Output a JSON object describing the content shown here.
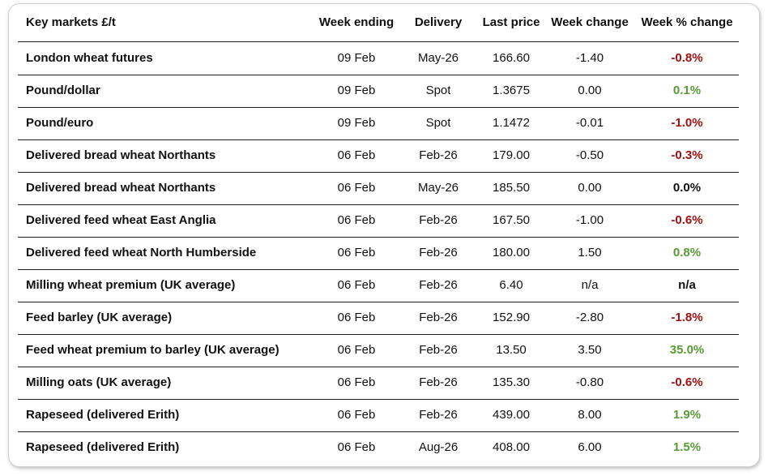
{
  "table": {
    "header": [
      "Key markets £/t",
      "Week ending",
      "Delivery",
      "Last price",
      "Week change",
      "Week % change"
    ],
    "rows": [
      [
        "London wheat futures",
        "09 Feb",
        "May-26",
        "166.60",
        "-1.40",
        "-0.8%"
      ],
      [
        "Pound/dollar",
        "09 Feb",
        "Spot",
        "1.3675",
        "0.00",
        "0.1%"
      ],
      [
        "Pound/euro",
        "09 Feb",
        "Spot",
        "1.1472",
        "-0.01",
        "-1.0%"
      ],
      [
        "Delivered bread wheat Northants",
        "06 Feb",
        "Feb-26",
        "179.00",
        "-0.50",
        "-0.3%"
      ],
      [
        "Delivered bread wheat Northants",
        "06 Feb",
        "May-26",
        "185.50",
        "0.00",
        "0.0%"
      ],
      [
        "Delivered feed wheat East Anglia",
        "06 Feb",
        "Feb-26",
        "167.50",
        "-1.00",
        "-0.6%"
      ],
      [
        "Delivered feed wheat North Humberside",
        "06 Feb",
        "Feb-26",
        "180.00",
        "1.50",
        "0.8%"
      ],
      [
        "Milling wheat premium (UK average)",
        "06 Feb",
        "Feb-26",
        "6.40",
        "n/a",
        "n/a"
      ],
      [
        "Feed barley (UK average)",
        "06 Feb",
        "Feb-26",
        "152.90",
        "-2.80",
        "-1.8%"
      ],
      [
        "Feed wheat premium to barley (UK average)",
        "06 Feb",
        "Feb-26",
        "13.50",
        "3.50",
        "35.0%"
      ],
      [
        "Milling oats (UK average)",
        "06 Feb",
        "Feb-26",
        "135.30",
        "-0.80",
        "-0.6%"
      ],
      [
        "Rapeseed (delivered Erith)",
        "06 Feb",
        "Feb-26",
        "439.00",
        "8.00",
        "1.9%"
      ],
      [
        "Rapeseed (delivered Erith)",
        "06 Feb",
        "Aug-26",
        "408.00",
        "6.00",
        "1.5%"
      ]
    ]
  }
}
